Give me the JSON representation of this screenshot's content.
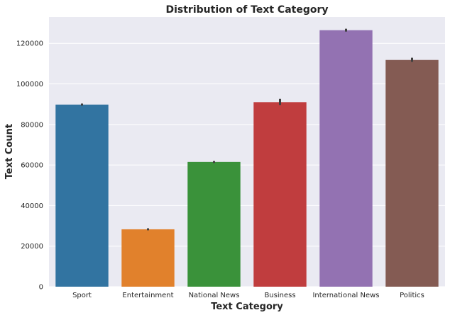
{
  "chart_data": {
    "type": "bar",
    "title": "Distribution of Text Category",
    "xlabel": "Text Category",
    "ylabel": "Text Count",
    "categories": [
      "Sport",
      "Entertainment",
      "National News",
      "Business",
      "International News",
      "Politics"
    ],
    "values": [
      89800,
      28300,
      61500,
      91000,
      126500,
      111800
    ],
    "error": [
      [
        89300,
        90300
      ],
      [
        27800,
        28800
      ],
      [
        61000,
        62000
      ],
      [
        89600,
        92600
      ],
      [
        125800,
        127200
      ],
      [
        110900,
        112900
      ]
    ],
    "colors": [
      "#3274a1",
      "#e1812c",
      "#3a923a",
      "#c03d3e",
      "#9372b2",
      "#845b53"
    ],
    "ylim": [
      0,
      133000
    ],
    "yticks": [
      0,
      20000,
      40000,
      60000,
      80000,
      100000,
      120000
    ],
    "ytick_labels": [
      "0",
      "20000",
      "40000",
      "60000",
      "80000",
      "100000",
      "120000"
    ],
    "grid": true,
    "background": "#eaeaf2",
    "errorbar_color": "#3f3f3f"
  }
}
